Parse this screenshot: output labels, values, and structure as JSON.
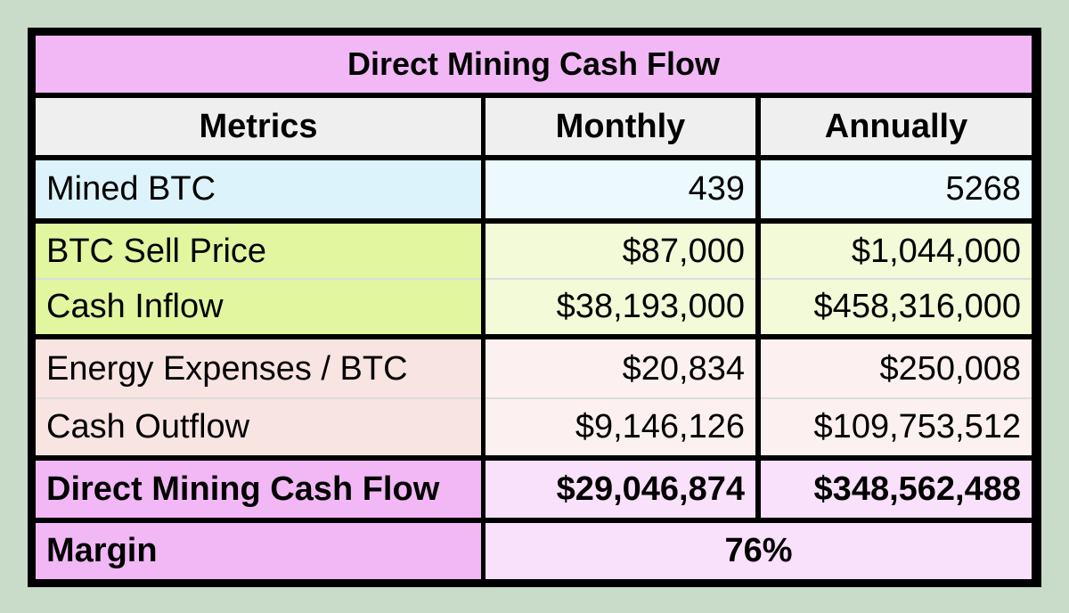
{
  "title": "Direct Mining Cash Flow",
  "headers": {
    "metrics": "Metrics",
    "monthly": "Monthly",
    "annually": "Annually"
  },
  "rows": {
    "mined_btc": {
      "label": "Mined BTC",
      "monthly": "439",
      "annually": "5268"
    },
    "btc_sell_price": {
      "label": "BTC Sell Price",
      "monthly": "$87,000",
      "annually": "$1,044,000"
    },
    "cash_inflow": {
      "label": "Cash Inflow",
      "monthly": "$38,193,000",
      "annually": "$458,316,000"
    },
    "energy_expenses": {
      "label": "Energy Expenses / BTC",
      "monthly": "$20,834",
      "annually": "$250,008"
    },
    "cash_outflow": {
      "label": "Cash Outflow",
      "monthly": "$9,146,126",
      "annually": "$109,753,512"
    },
    "direct_mining_cash_flow": {
      "label": "Direct Mining Cash Flow",
      "monthly": "$29,046,874",
      "annually": "$348,562,488"
    },
    "margin": {
      "label": "Margin",
      "value": "76%"
    }
  },
  "colors": {
    "background": "#c9dcc9",
    "title": "#f1b8f5",
    "header": "#efefef",
    "blue": "#dcf3fb",
    "green": "#e2f6a0",
    "pink": "#f8e4e1",
    "magenta": "#f1b8f5"
  }
}
